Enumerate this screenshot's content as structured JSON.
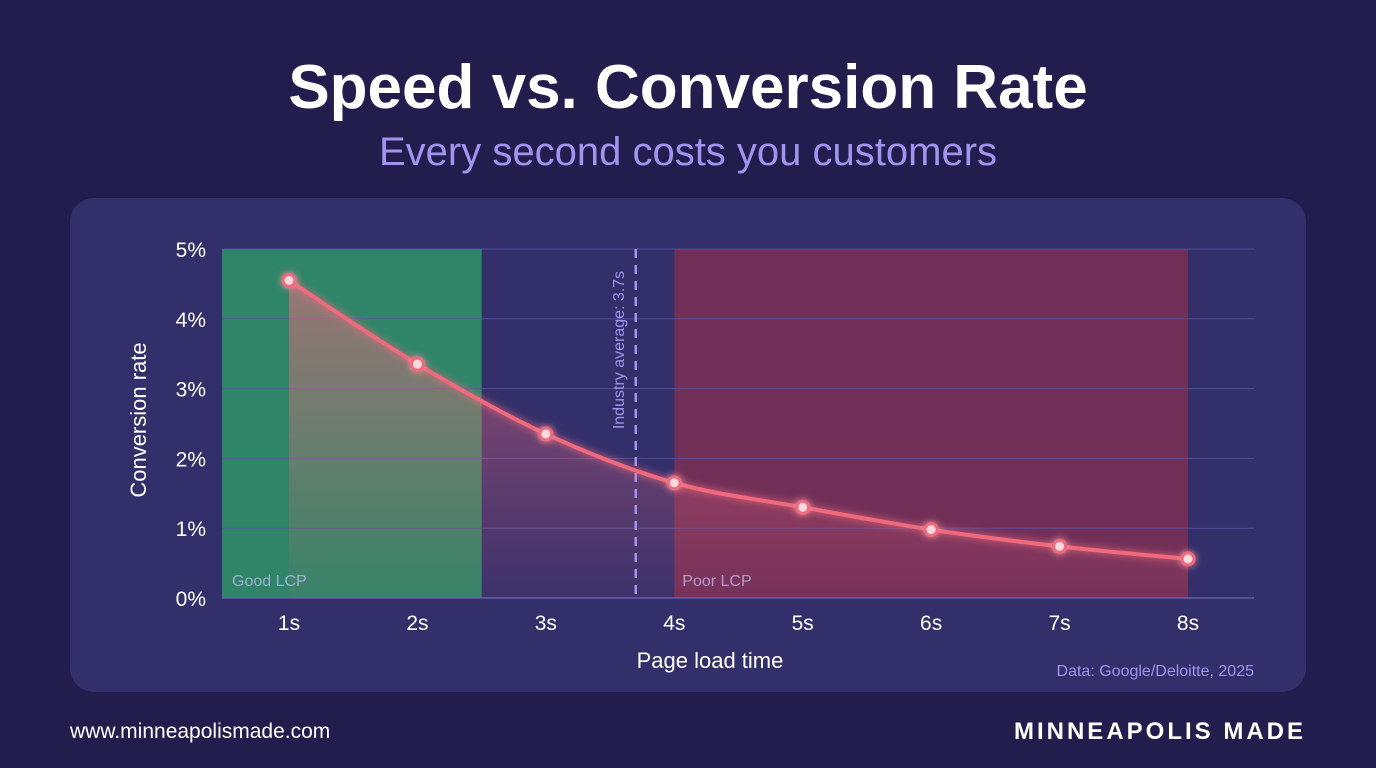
{
  "header": {
    "title": "Speed vs. Conversion Rate",
    "subtitle": "Every second costs you customers"
  },
  "footer": {
    "url": "www.minneapolismade.com",
    "brand": "MINNEAPOLIS MADE"
  },
  "colors": {
    "background": "#221d4d",
    "panel": "#332f6a",
    "good_zone": "#2f8a68",
    "poor_zone": "#7c2f55",
    "line": "#f06a7d",
    "accent_text": "#a193ee"
  },
  "chart_data": {
    "type": "line",
    "xlabel": "Page load time",
    "ylabel": "Conversion rate",
    "x": [
      1,
      2,
      3,
      4,
      5,
      6,
      7,
      8
    ],
    "x_tick_labels": [
      "1s",
      "2s",
      "3s",
      "4s",
      "5s",
      "6s",
      "7s",
      "8s"
    ],
    "xlim": [
      1,
      8
    ],
    "y_tick_labels": [
      "0%",
      "1%",
      "2%",
      "3%",
      "4%",
      "5%"
    ],
    "y_ticks": [
      0,
      1,
      2,
      3,
      4,
      5
    ],
    "ylim": [
      0,
      5
    ],
    "series": [
      {
        "values": [
          4.55,
          3.35,
          2.35,
          1.65,
          1.3,
          0.98,
          0.74,
          0.56
        ]
      }
    ],
    "zones": [
      {
        "label": "Good LCP",
        "x_start": 0.5,
        "x_end": 2.5
      },
      {
        "label": "Poor LCP",
        "x_start": 4.0,
        "x_end": 8.0
      }
    ],
    "reference_line": {
      "x": 3.7,
      "label": "Industry average: 3.7s"
    },
    "source": "Data: Google/Deloitte, 2025",
    "grid": true
  }
}
